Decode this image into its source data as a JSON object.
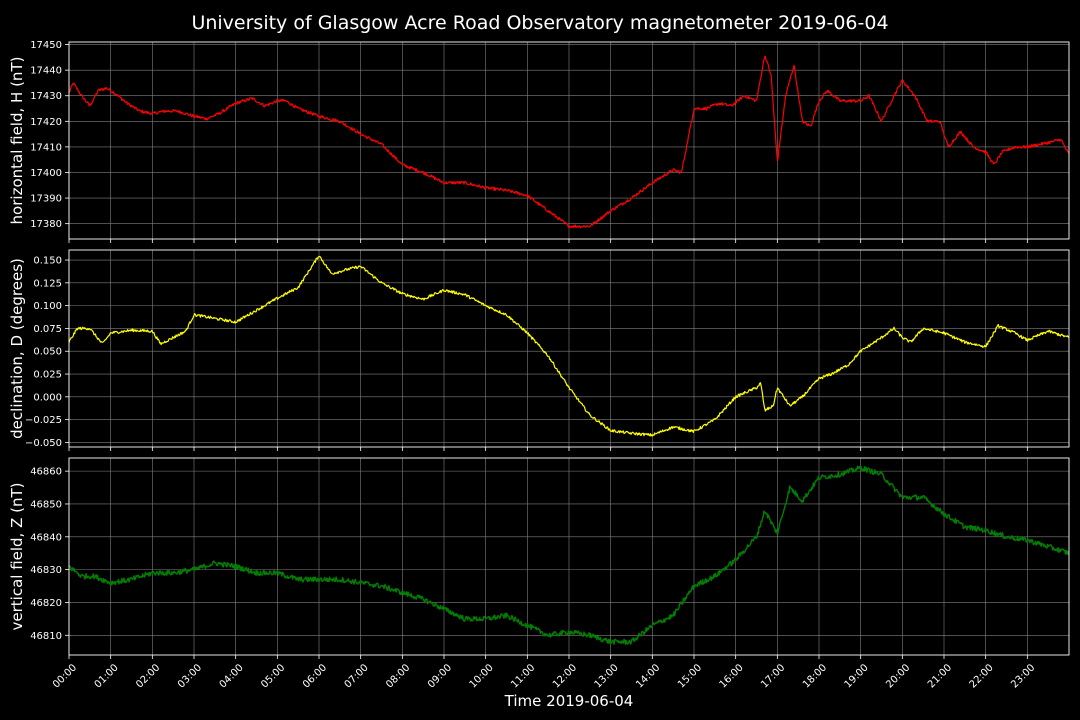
{
  "chart_data": {
    "type": "line",
    "title": "University of Glasgow Acre Road Observatory magnetometer 2019-06-04",
    "xlabel": "Time 2019-06-04",
    "x_ticks": [
      "00:00",
      "01:00",
      "02:00",
      "03:00",
      "04:00",
      "05:00",
      "06:00",
      "07:00",
      "08:00",
      "09:00",
      "10:00",
      "11:00",
      "12:00",
      "13:00",
      "14:00",
      "15:00",
      "16:00",
      "17:00",
      "18:00",
      "19:00",
      "20:00",
      "21:00",
      "22:00",
      "23:00"
    ],
    "xlim_hours": [
      0,
      24
    ],
    "grid": true,
    "colors": {
      "background": "#000000",
      "frame": "#ffffff",
      "grid": "#808080",
      "text": "#ffffff"
    },
    "panels": [
      {
        "ylabel": "horizontal field, H (nT)",
        "color": "#ff0000",
        "ylim": [
          17374,
          17451
        ],
        "yticks": [
          "17380",
          "17390",
          "17400",
          "17410",
          "17420",
          "17430",
          "17440",
          "17450"
        ],
        "ytick_values": [
          17380,
          17390,
          17400,
          17410,
          17420,
          17430,
          17440,
          17450
        ],
        "noise": 0.6,
        "points": [
          [
            0,
            17431
          ],
          [
            0.1,
            17435
          ],
          [
            0.3,
            17430
          ],
          [
            0.5,
            17426
          ],
          [
            0.7,
            17432
          ],
          [
            0.9,
            17433
          ],
          [
            1.1,
            17431
          ],
          [
            1.4,
            17427
          ],
          [
            1.7,
            17424
          ],
          [
            2,
            17423
          ],
          [
            2.3,
            17424
          ],
          [
            2.6,
            17424
          ],
          [
            3,
            17422
          ],
          [
            3.3,
            17421
          ],
          [
            3.6,
            17423
          ],
          [
            4,
            17427
          ],
          [
            4.4,
            17429
          ],
          [
            4.7,
            17426
          ],
          [
            5,
            17428
          ],
          [
            5.2,
            17428
          ],
          [
            5.5,
            17425
          ],
          [
            6,
            17422
          ],
          [
            6.5,
            17420
          ],
          [
            7,
            17415
          ],
          [
            7.5,
            17411
          ],
          [
            8,
            17403
          ],
          [
            8.5,
            17400
          ],
          [
            9,
            17396
          ],
          [
            9.5,
            17396
          ],
          [
            10,
            17394
          ],
          [
            10.5,
            17393
          ],
          [
            11,
            17391
          ],
          [
            11.5,
            17385
          ],
          [
            12,
            17379
          ],
          [
            12.5,
            17379
          ],
          [
            13,
            17385
          ],
          [
            13.5,
            17390
          ],
          [
            14,
            17396
          ],
          [
            14.5,
            17401
          ],
          [
            14.7,
            17400
          ],
          [
            15,
            17425
          ],
          [
            15.3,
            17425
          ],
          [
            15.6,
            17427
          ],
          [
            15.9,
            17426
          ],
          [
            16.2,
            17430
          ],
          [
            16.5,
            17428
          ],
          [
            16.7,
            17446
          ],
          [
            16.85,
            17438
          ],
          [
            17,
            17404
          ],
          [
            17.2,
            17430
          ],
          [
            17.4,
            17442
          ],
          [
            17.6,
            17420
          ],
          [
            17.8,
            17418
          ],
          [
            18,
            17428
          ],
          [
            18.2,
            17432
          ],
          [
            18.5,
            17428
          ],
          [
            19,
            17428
          ],
          [
            19.2,
            17430
          ],
          [
            19.5,
            17420
          ],
          [
            19.8,
            17430
          ],
          [
            20,
            17436
          ],
          [
            20.3,
            17430
          ],
          [
            20.6,
            17420
          ],
          [
            20.9,
            17420
          ],
          [
            21.1,
            17410
          ],
          [
            21.4,
            17416
          ],
          [
            21.7,
            17410
          ],
          [
            22,
            17408
          ],
          [
            22.2,
            17403
          ],
          [
            22.4,
            17408
          ],
          [
            22.7,
            17410
          ],
          [
            23,
            17410
          ],
          [
            23.3,
            17411
          ],
          [
            23.6,
            17412
          ],
          [
            23.8,
            17413
          ],
          [
            24,
            17407
          ]
        ]
      },
      {
        "ylabel": "declination, D (degrees)",
        "color": "#ffff00",
        "ylim": [
          -0.055,
          0.161
        ],
        "yticks": [
          "−0.050",
          "−0.025",
          "0.000",
          "0.025",
          "0.050",
          "0.075",
          "0.100",
          "0.125",
          "0.150"
        ],
        "ytick_values": [
          -0.05,
          -0.025,
          0,
          0.025,
          0.05,
          0.075,
          0.1,
          0.125,
          0.15
        ],
        "noise": 0.0015,
        "points": [
          [
            0,
            0.06
          ],
          [
            0.2,
            0.075
          ],
          [
            0.5,
            0.075
          ],
          [
            0.8,
            0.058
          ],
          [
            1,
            0.07
          ],
          [
            1.5,
            0.073
          ],
          [
            2,
            0.072
          ],
          [
            2.2,
            0.058
          ],
          [
            2.5,
            0.065
          ],
          [
            2.8,
            0.072
          ],
          [
            3,
            0.09
          ],
          [
            3.5,
            0.086
          ],
          [
            4,
            0.082
          ],
          [
            4.5,
            0.095
          ],
          [
            5,
            0.108
          ],
          [
            5.5,
            0.12
          ],
          [
            6,
            0.155
          ],
          [
            6.3,
            0.135
          ],
          [
            6.7,
            0.14
          ],
          [
            7,
            0.143
          ],
          [
            7.5,
            0.125
          ],
          [
            8,
            0.113
          ],
          [
            8.5,
            0.107
          ],
          [
            9,
            0.117
          ],
          [
            9.5,
            0.112
          ],
          [
            10,
            0.1
          ],
          [
            10.5,
            0.09
          ],
          [
            11,
            0.07
          ],
          [
            11.5,
            0.045
          ],
          [
            12,
            0.01
          ],
          [
            12.5,
            -0.02
          ],
          [
            13,
            -0.037
          ],
          [
            13.5,
            -0.04
          ],
          [
            14,
            -0.042
          ],
          [
            14.5,
            -0.033
          ],
          [
            15,
            -0.038
          ],
          [
            15.5,
            -0.025
          ],
          [
            16,
            0
          ],
          [
            16.5,
            0.01
          ],
          [
            16.6,
            0.015
          ],
          [
            16.7,
            -0.015
          ],
          [
            16.9,
            -0.01
          ],
          [
            17,
            0.01
          ],
          [
            17.3,
            -0.01
          ],
          [
            17.6,
            0
          ],
          [
            18,
            0.02
          ],
          [
            18.3,
            0.025
          ],
          [
            18.7,
            0.035
          ],
          [
            19,
            0.05
          ],
          [
            19.5,
            0.065
          ],
          [
            19.8,
            0.075
          ],
          [
            20,
            0.065
          ],
          [
            20.2,
            0.06
          ],
          [
            20.5,
            0.075
          ],
          [
            20.8,
            0.072
          ],
          [
            21,
            0.07
          ],
          [
            21.5,
            0.06
          ],
          [
            22,
            0.055
          ],
          [
            22.3,
            0.078
          ],
          [
            22.7,
            0.07
          ],
          [
            23,
            0.062
          ],
          [
            23.5,
            0.072
          ],
          [
            24,
            0.065
          ]
        ]
      },
      {
        "ylabel": "vertical field, Z (nT)",
        "color": "#008000",
        "ylim": [
          46804,
          46864
        ],
        "yticks": [
          "46810",
          "46820",
          "46830",
          "46840",
          "46850",
          "46860"
        ],
        "ytick_values": [
          46810,
          46820,
          46830,
          46840,
          46850,
          46860
        ],
        "noise": 0.8,
        "points": [
          [
            0,
            46831
          ],
          [
            0.3,
            46828
          ],
          [
            0.6,
            46828
          ],
          [
            1,
            46826
          ],
          [
            1.5,
            46827
          ],
          [
            2,
            46829
          ],
          [
            2.5,
            46829
          ],
          [
            3,
            46830
          ],
          [
            3.5,
            46832
          ],
          [
            4,
            46831
          ],
          [
            4.5,
            46829
          ],
          [
            5,
            46829
          ],
          [
            5.5,
            46827
          ],
          [
            6,
            46827
          ],
          [
            6.5,
            46827
          ],
          [
            7,
            46826
          ],
          [
            7.5,
            46825
          ],
          [
            8,
            46823
          ],
          [
            8.5,
            46821
          ],
          [
            9,
            46818
          ],
          [
            9.5,
            46815
          ],
          [
            10,
            46815
          ],
          [
            10.5,
            46816
          ],
          [
            11,
            46813
          ],
          [
            11.5,
            46810
          ],
          [
            12,
            46811
          ],
          [
            12.5,
            46810
          ],
          [
            13,
            46808
          ],
          [
            13.5,
            46808
          ],
          [
            14,
            46813
          ],
          [
            14.5,
            46816
          ],
          [
            15,
            46825
          ],
          [
            15.5,
            46828
          ],
          [
            16,
            46833
          ],
          [
            16.5,
            46840
          ],
          [
            16.7,
            46848
          ],
          [
            17,
            46841
          ],
          [
            17.3,
            46855
          ],
          [
            17.6,
            46851
          ],
          [
            18,
            46858
          ],
          [
            18.5,
            46859
          ],
          [
            19,
            46861
          ],
          [
            19.5,
            46859
          ],
          [
            20,
            46852
          ],
          [
            20.5,
            46852
          ],
          [
            21,
            46847
          ],
          [
            21.5,
            46843
          ],
          [
            22,
            46842
          ],
          [
            22.5,
            46840
          ],
          [
            23,
            46839
          ],
          [
            23.5,
            46837
          ],
          [
            24,
            46835
          ]
        ]
      }
    ]
  }
}
